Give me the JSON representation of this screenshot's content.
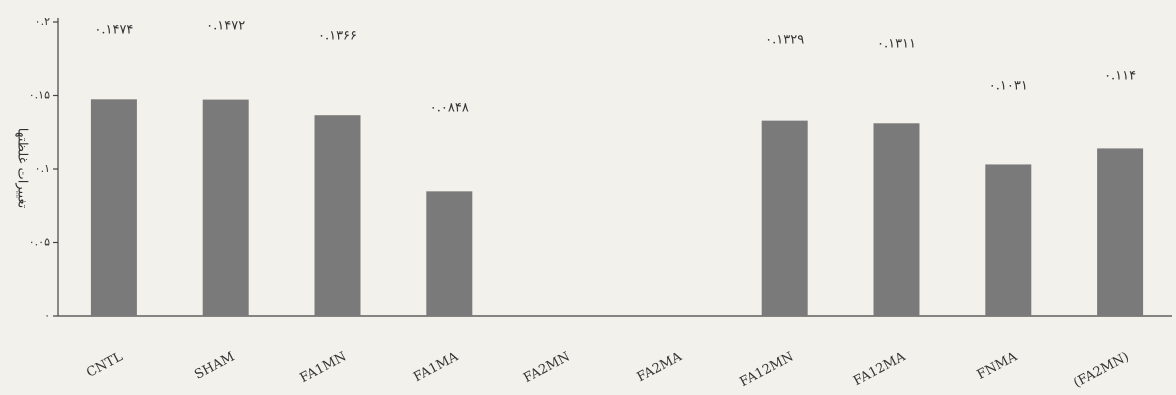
{
  "chart_data": {
    "type": "bar",
    "y_label": "تغییرات غلظتها",
    "categories": [
      "CNTL",
      "SHAM",
      "FA1MN",
      "FA1MA",
      "FA2MN",
      "FA2MA",
      "FA12MN",
      "FA12MA",
      "FNMA",
      "(FA2MN)"
    ],
    "values": [
      0.1474,
      0.1472,
      0.1366,
      0.0848,
      null,
      null,
      0.1329,
      0.1311,
      0.1031,
      0.114
    ],
    "value_labels": [
      "۰.۱۴۷۴",
      "۰.۱۴۷۲",
      "۰.۱۳۶۶",
      "۰.۰۸۴۸",
      null,
      null,
      "۰.۱۳۲۹",
      "۰.۱۳۱۱",
      "۰.۱۰۳۱",
      "۰.۱۱۴"
    ],
    "color": "#7a7a7a",
    "ylim": [
      0,
      0.2
    ],
    "yticks": [
      {
        "value": 0,
        "label": "۰"
      },
      {
        "value": 0.05,
        "label": "۰.۰۵"
      },
      {
        "value": 0.1,
        "label": "۰.۱"
      },
      {
        "value": 0.15,
        "label": "۰.۱۵"
      },
      {
        "value": 0.2,
        "label": "۰.۲"
      }
    ],
    "grid": false
  }
}
